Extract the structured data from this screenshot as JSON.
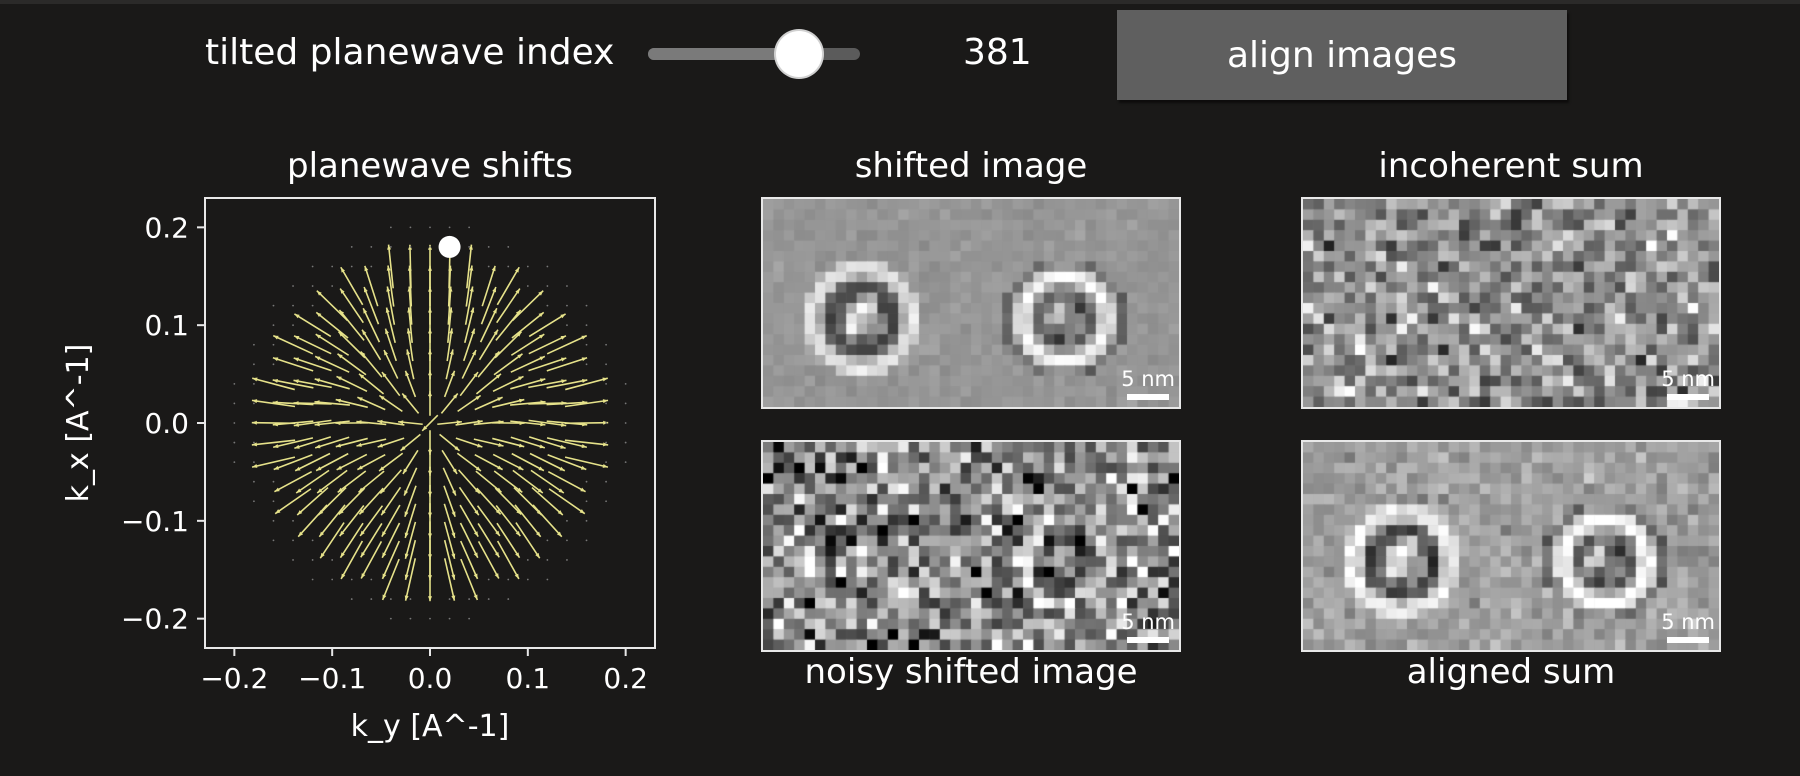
{
  "controls": {
    "slider_label": "tilted planewave index",
    "slider_value": "381",
    "slider_fraction": 0.71,
    "button_label": "align images"
  },
  "panels": {
    "shifts_title": "planewave shifts",
    "shifted_title": "shifted image",
    "noisy_title": "noisy shifted image",
    "incoherent_title": "incoherent sum",
    "aligned_title": "aligned sum",
    "scalebar_label": "5 nm"
  },
  "chart_data": {
    "type": "quiver",
    "title": "planewave shifts",
    "xlabel": "k_y [A^-1]",
    "ylabel": "k_x [A^-1]",
    "xlim": [
      -0.23,
      0.23
    ],
    "ylim": [
      -0.23,
      0.23
    ],
    "xticks": [
      -0.2,
      -0.1,
      0.0,
      0.1,
      0.2
    ],
    "yticks": [
      -0.2,
      -0.1,
      0.0,
      0.1,
      0.2
    ],
    "xtick_labels": [
      "−0.2",
      "−0.1",
      "0.0",
      "0.1",
      "0.2"
    ],
    "ytick_labels": [
      "−0.2",
      "−0.1",
      "0.0",
      "0.1",
      "0.2"
    ],
    "aperture_radius": 0.165,
    "grid_spacing": 0.02,
    "selected_point": {
      "x": 0.02,
      "y": 0.18
    },
    "arrow_color": "#e6e28a",
    "background_color": "#1a1918"
  },
  "colors": {
    "background": "#1a1918",
    "button": "#5f5f5f",
    "slider_track": "#5b5b5b",
    "arrow": "#e6e28a",
    "frame": "#e8e8e8"
  }
}
